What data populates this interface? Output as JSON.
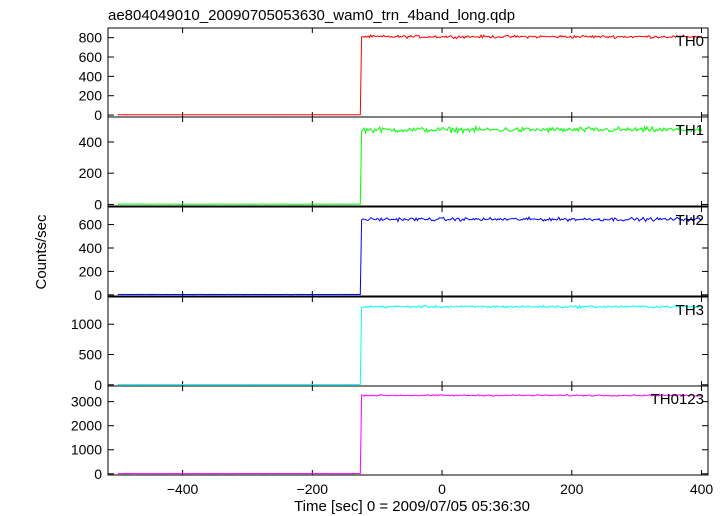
{
  "title": "ae804049010_20090705053630_wam0_trn_4band_long.qdp",
  "xlabel": "Time [sec] 0 = 2009/07/05 05:36:30",
  "ylabel": "Counts/sec",
  "chart_data": {
    "type": "line",
    "title": "ae804049010_20090705053630_wam0_trn_4band_long.qdp",
    "xlabel": "Time [sec] 0 = 2009/07/05 05:36:30",
    "ylabel": "Counts/sec",
    "xlim": [
      -515,
      410
    ],
    "xticks": [
      -400,
      -200,
      0,
      200,
      400
    ],
    "xtick_labels": [
      "−400",
      "−200",
      "0",
      "200",
      "400"
    ],
    "step_time": -125,
    "t_start": -500,
    "t_end": 400,
    "series": [
      {
        "name": "TH0",
        "color": "#ff0000",
        "ylim": [
          -20,
          900
        ],
        "yticks": [
          0,
          200,
          400,
          600,
          800
        ],
        "before": 3,
        "after": 810,
        "noise": 22
      },
      {
        "name": "TH1",
        "color": "#00ff00",
        "ylim": [
          -10,
          560
        ],
        "yticks": [
          0,
          200,
          400
        ],
        "before": 2,
        "after": 478,
        "noise": 25
      },
      {
        "name": "TH2",
        "color": "#0000ff",
        "ylim": [
          -10,
          750
        ],
        "yticks": [
          0,
          200,
          400,
          600
        ],
        "before": 3,
        "after": 645,
        "noise": 22
      },
      {
        "name": "TH3",
        "color": "#00ffff",
        "ylim": [
          -20,
          1450
        ],
        "yticks": [
          0,
          500,
          1000
        ],
        "before": 5,
        "after": 1290,
        "noise": 30
      },
      {
        "name": "TH0123",
        "color": "#ff00ff",
        "ylim": [
          -50,
          3650
        ],
        "yticks": [
          0,
          1000,
          2000,
          3000
        ],
        "before": 10,
        "after": 3260,
        "noise": 45
      }
    ]
  }
}
